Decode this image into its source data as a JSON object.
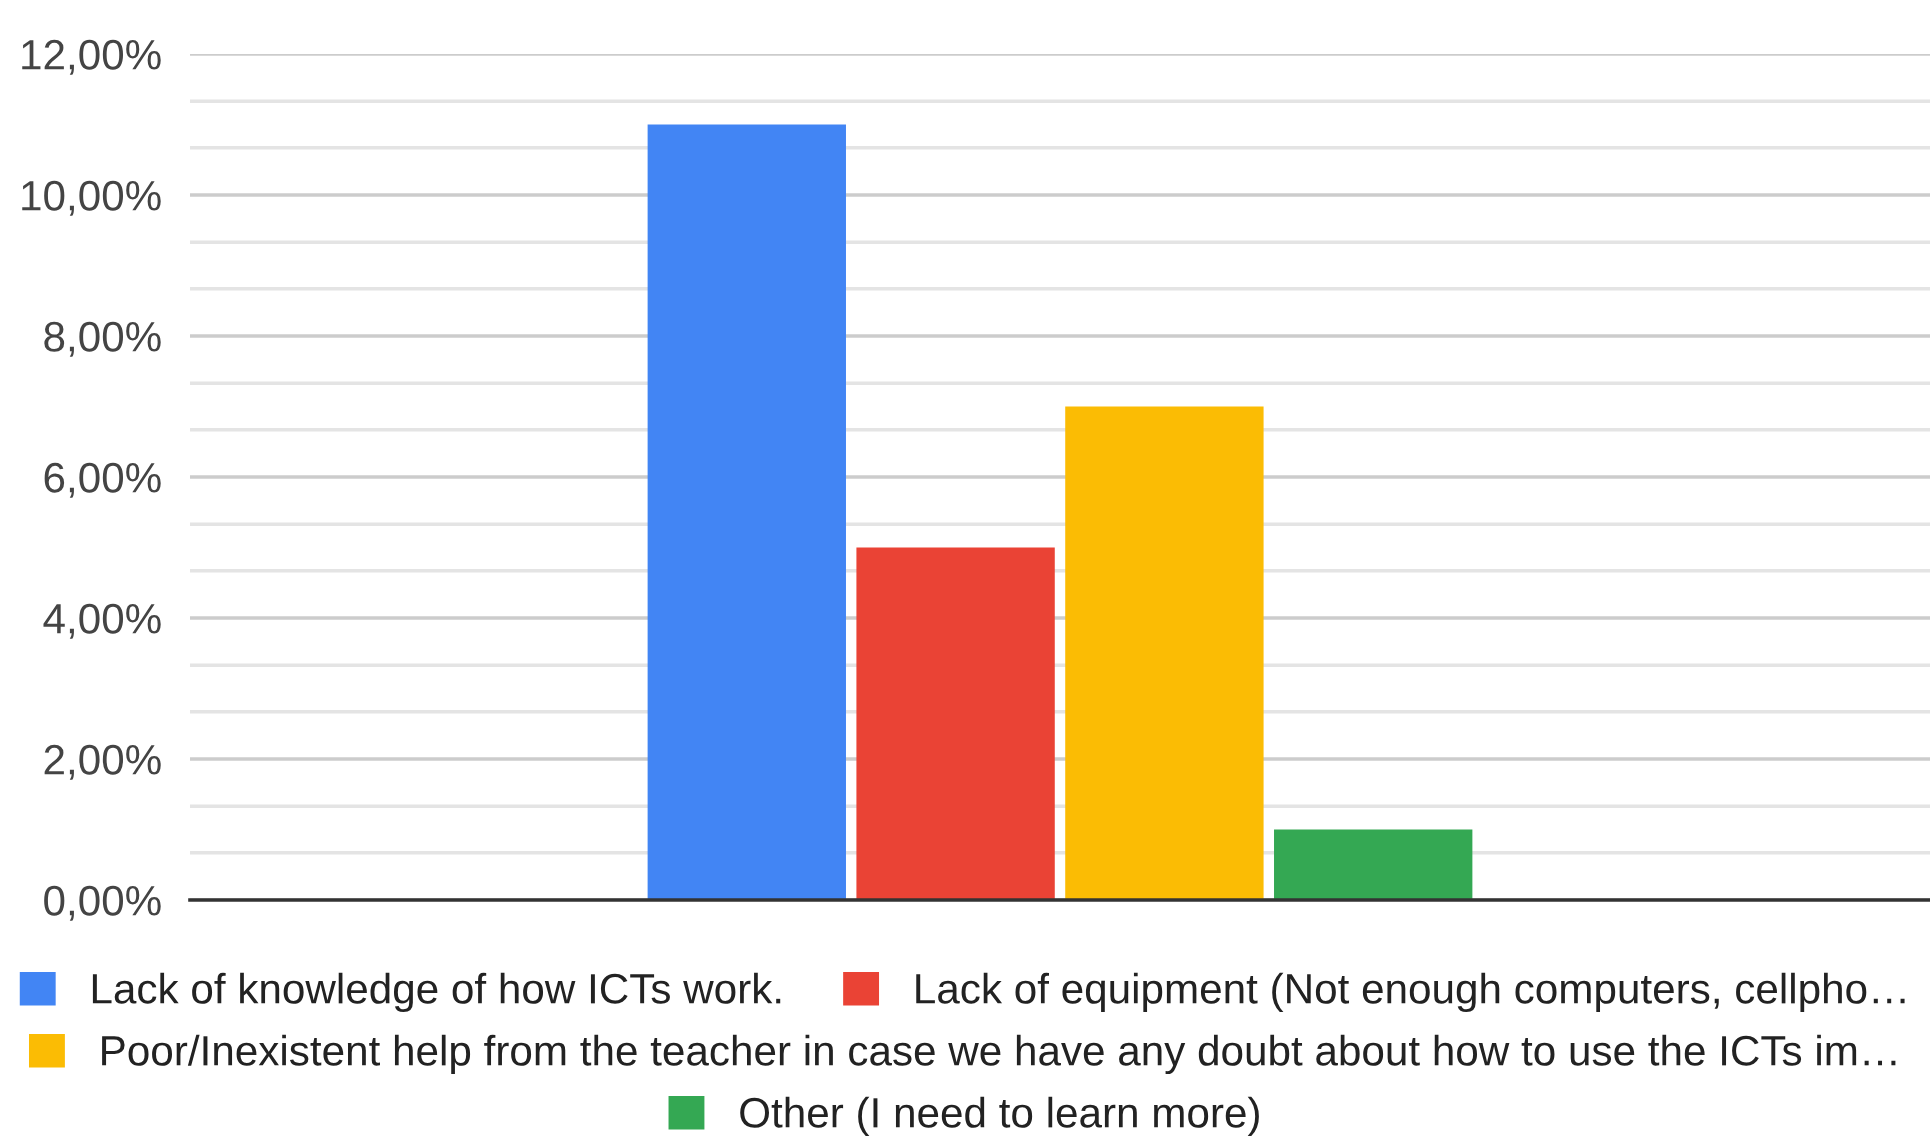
{
  "chart_data": {
    "type": "bar",
    "categories": [
      null
    ],
    "series": [
      {
        "name": "Lack of knowledge of how ICTs work.",
        "color": "#4285f4",
        "values": [
          11
        ]
      },
      {
        "name": "Lack of equipment (Not enough computers, cellpho…",
        "color": "#ea4335",
        "values": [
          5
        ]
      },
      {
        "name": "Poor/Inexistent help from the teacher in case we have any doubt about how to use the ICTs im…",
        "color": "#fbbc04",
        "values": [
          7
        ]
      },
      {
        "name": "Other (I need to learn more)",
        "color": "#34a853",
        "values": [
          1
        ]
      }
    ],
    "ylim": [
      0,
      12
    ],
    "yticks": [
      {
        "value": 0,
        "label": "0,00%"
      },
      {
        "value": 0.67,
        "label": null
      },
      {
        "value": 1.33,
        "label": null
      },
      {
        "value": 2,
        "label": "2,00%"
      },
      {
        "value": 2.67,
        "label": null
      },
      {
        "value": 3.33,
        "label": null
      },
      {
        "value": 4,
        "label": "4,00%"
      },
      {
        "value": 4.67,
        "label": null
      },
      {
        "value": 5.33,
        "label": null
      },
      {
        "value": 6,
        "label": "6,00%"
      },
      {
        "value": 6.67,
        "label": null
      },
      {
        "value": 7.33,
        "label": null
      },
      {
        "value": 8,
        "label": "8,00%"
      },
      {
        "value": 8.67,
        "label": null
      },
      {
        "value": 9.33,
        "label": null
      },
      {
        "value": 10,
        "label": "10,00%"
      },
      {
        "value": 10.67,
        "label": null
      },
      {
        "value": 11.33,
        "label": null
      },
      {
        "value": 12,
        "label": "12,00%"
      }
    ],
    "grid": "y",
    "legend": "bottom",
    "tick_labels": "y"
  }
}
